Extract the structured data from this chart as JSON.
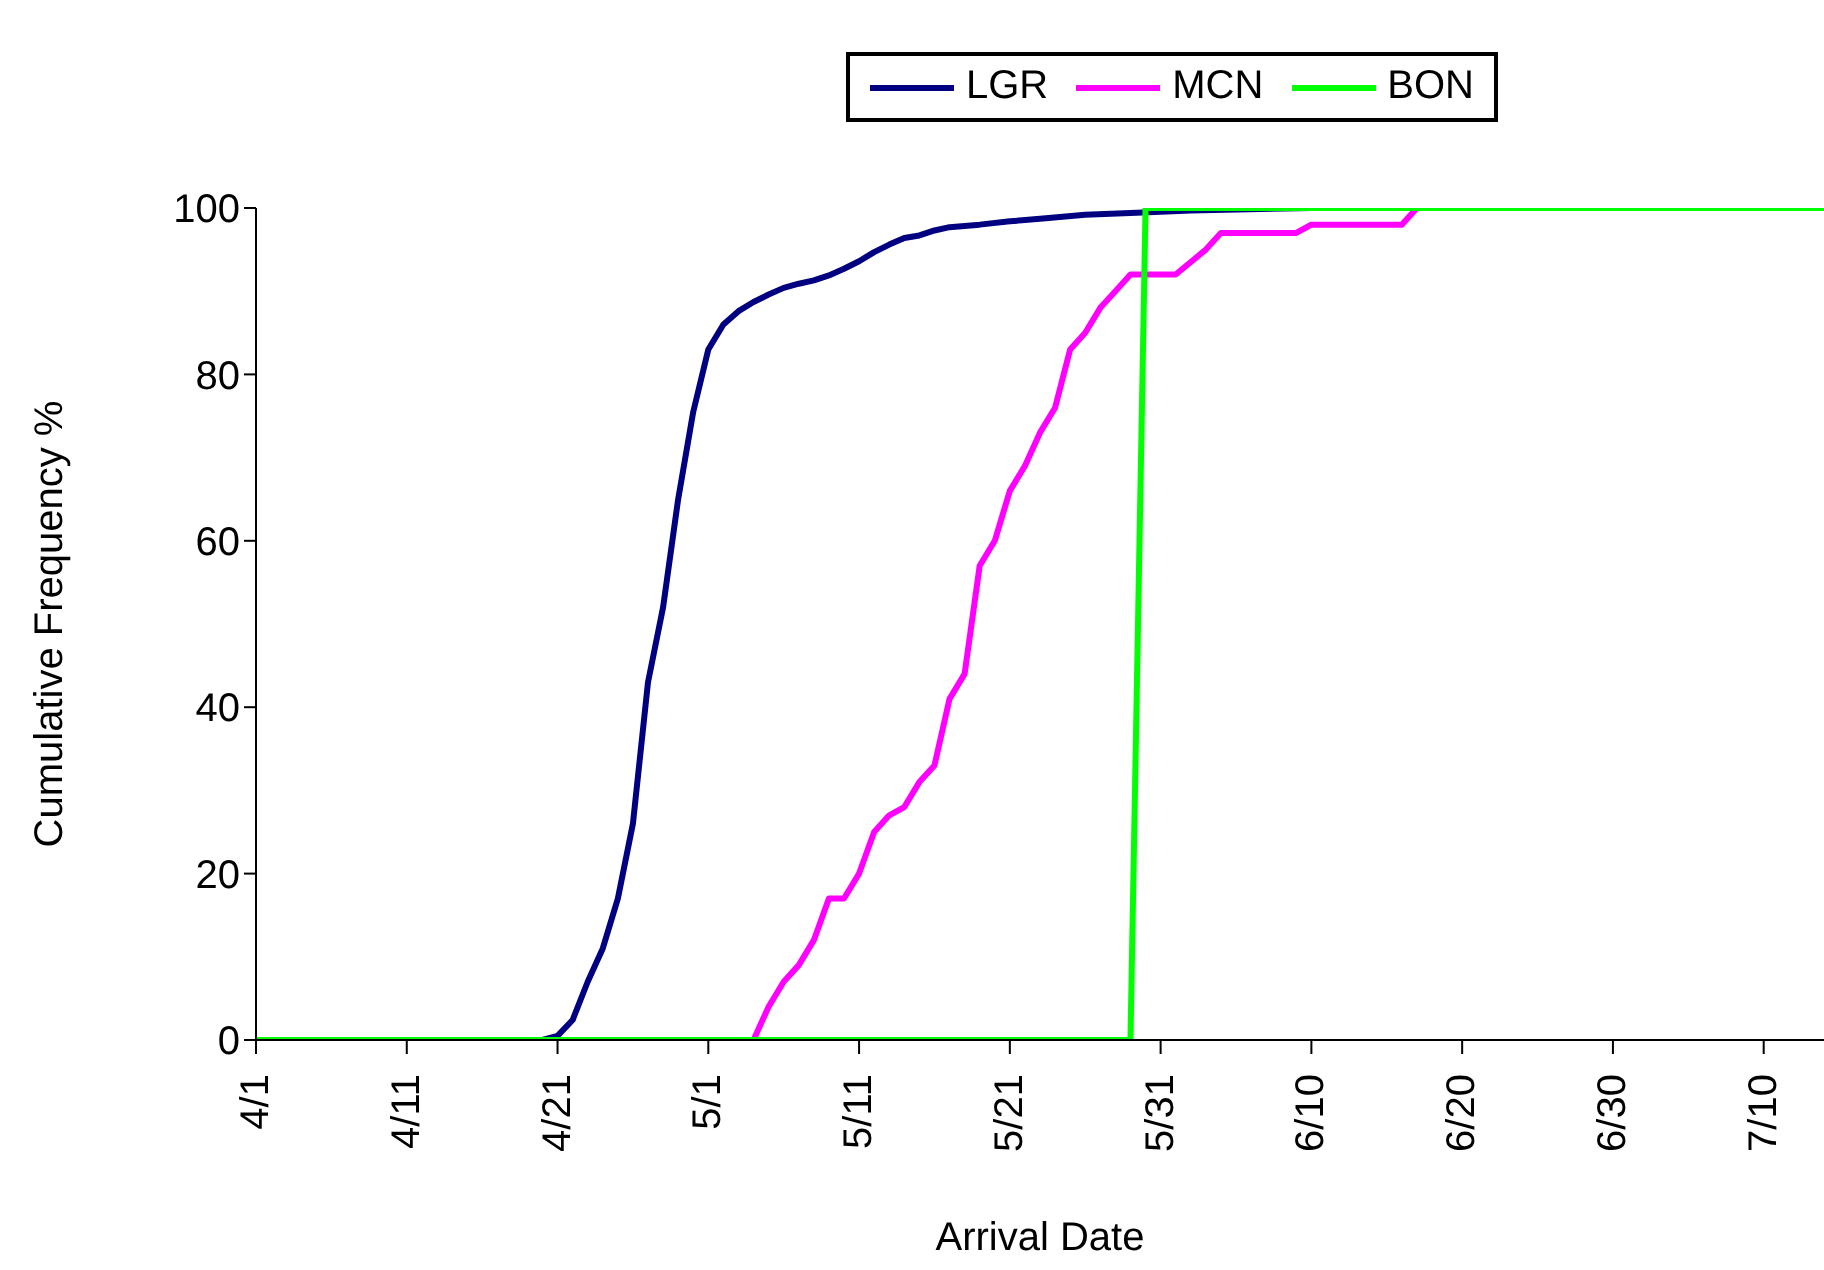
{
  "chart_data": {
    "type": "line",
    "xlabel": "Arrival Date",
    "ylabel": "Cumulative Frequency %",
    "xlim": [
      "--04-01",
      "--07-14"
    ],
    "xticks": [
      {
        "value": "--04-01",
        "label": "4/1"
      },
      {
        "value": "--04-11",
        "label": "4/11"
      },
      {
        "value": "--04-21",
        "label": "4/21"
      },
      {
        "value": "--05-01",
        "label": "5/1"
      },
      {
        "value": "--05-11",
        "label": "5/11"
      },
      {
        "value": "--05-21",
        "label": "5/21"
      },
      {
        "value": "--05-31",
        "label": "5/31"
      },
      {
        "value": "--06-10",
        "label": "6/10"
      },
      {
        "value": "--06-20",
        "label": "6/20"
      },
      {
        "value": "--06-30",
        "label": "6/30"
      },
      {
        "value": "--07-10",
        "label": "7/10"
      }
    ],
    "ylim": [
      0,
      100
    ],
    "yticks": [
      0,
      20,
      40,
      60,
      80,
      100
    ],
    "legend": "top",
    "marker": "none",
    "line_style": "solid",
    "series": [
      {
        "name": "LGR",
        "color": "#000080",
        "x": [
          "--04-01",
          "--04-20",
          "--04-21",
          "--04-22",
          "--04-23",
          "--04-24",
          "--04-25",
          "--04-26",
          "--04-27",
          "--04-28",
          "--04-29",
          "--04-30",
          "--05-01",
          "--05-02",
          "--05-03",
          "--05-04",
          "--05-05",
          "--05-06",
          "--05-07",
          "--05-08",
          "--05-09",
          "--05-10",
          "--05-11",
          "--05-12",
          "--05-13",
          "--05-14",
          "--05-15",
          "--05-16",
          "--05-17",
          "--05-19",
          "--05-21",
          "--05-23",
          "--05-26",
          "--05-29",
          "--06-02",
          "--06-10",
          "--07-14"
        ],
        "values": [
          0,
          0,
          0.5,
          2.4,
          7,
          11,
          17,
          26,
          43,
          52,
          65,
          75.5,
          83,
          86,
          87.6,
          88.7,
          89.6,
          90.4,
          90.9,
          91.3,
          91.9,
          92.7,
          93.6,
          94.7,
          95.6,
          96.4,
          96.7,
          97.3,
          97.7,
          98,
          98.4,
          98.7,
          99.2,
          99.4,
          99.7,
          100,
          100
        ]
      },
      {
        "name": "MCN",
        "color": "#ff00ff",
        "x": [
          "--04-01",
          "--05-04",
          "--05-05",
          "--05-06",
          "--05-07",
          "--05-08",
          "--05-09",
          "--05-10",
          "--05-11",
          "--05-12",
          "--05-13",
          "--05-14",
          "--05-15",
          "--05-16",
          "--05-17",
          "--05-18",
          "--05-19",
          "--05-20",
          "--05-21",
          "--05-22",
          "--05-23",
          "--05-24",
          "--05-25",
          "--05-26",
          "--05-27",
          "--05-28",
          "--05-29",
          "--06-01",
          "--06-03",
          "--06-04",
          "--06-09",
          "--06-10",
          "--06-16",
          "--06-17",
          "--07-14"
        ],
        "values": [
          0,
          0,
          4,
          7,
          9,
          12,
          17,
          17,
          20,
          25,
          27,
          28,
          31,
          33,
          41,
          44,
          57,
          60,
          66,
          69,
          73,
          76,
          83,
          85,
          88,
          90,
          92,
          92,
          95,
          97,
          97,
          98,
          98,
          100,
          100
        ]
      },
      {
        "name": "BON",
        "color": "#00ff00",
        "x": [
          "--04-01",
          "--05-29",
          "--05-30",
          "--07-14"
        ],
        "values": [
          0,
          0,
          100,
          100
        ]
      }
    ]
  }
}
